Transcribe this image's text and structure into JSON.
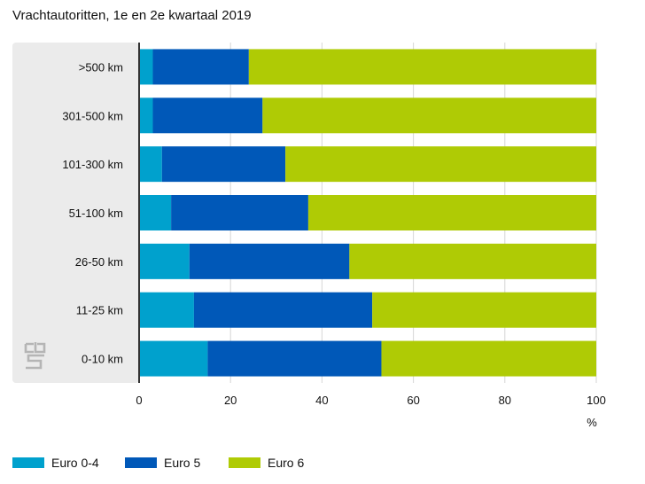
{
  "chart_data": {
    "type": "bar",
    "orientation": "horizontal",
    "stacked": true,
    "title": "Vrachtautoritten, 1e en 2e kwartaal 2019",
    "xlabel": "%",
    "ylabel": "",
    "xlim": [
      0,
      100
    ],
    "xticks": [
      "0",
      "20",
      "40",
      "60",
      "80",
      "100"
    ],
    "categories": [
      ">500 km",
      "301-500 km",
      "101-300 km",
      "51-100 km",
      "26-50 km",
      "11-25 km",
      "0-10 km"
    ],
    "series": [
      {
        "name": "Euro 0-4",
        "color": "#00a1cd",
        "values": [
          3,
          3,
          5,
          7,
          11,
          12,
          15
        ]
      },
      {
        "name": "Euro 5",
        "color": "#0058b8",
        "values": [
          21,
          24,
          27,
          30,
          35,
          39,
          38
        ]
      },
      {
        "name": "Euro 6",
        "color": "#afcb05",
        "values": [
          76,
          73,
          68,
          63,
          54,
          49,
          47
        ]
      }
    ],
    "grid": true,
    "legend_position": "bottom"
  },
  "logo_icon": "cbs-logo-icon"
}
